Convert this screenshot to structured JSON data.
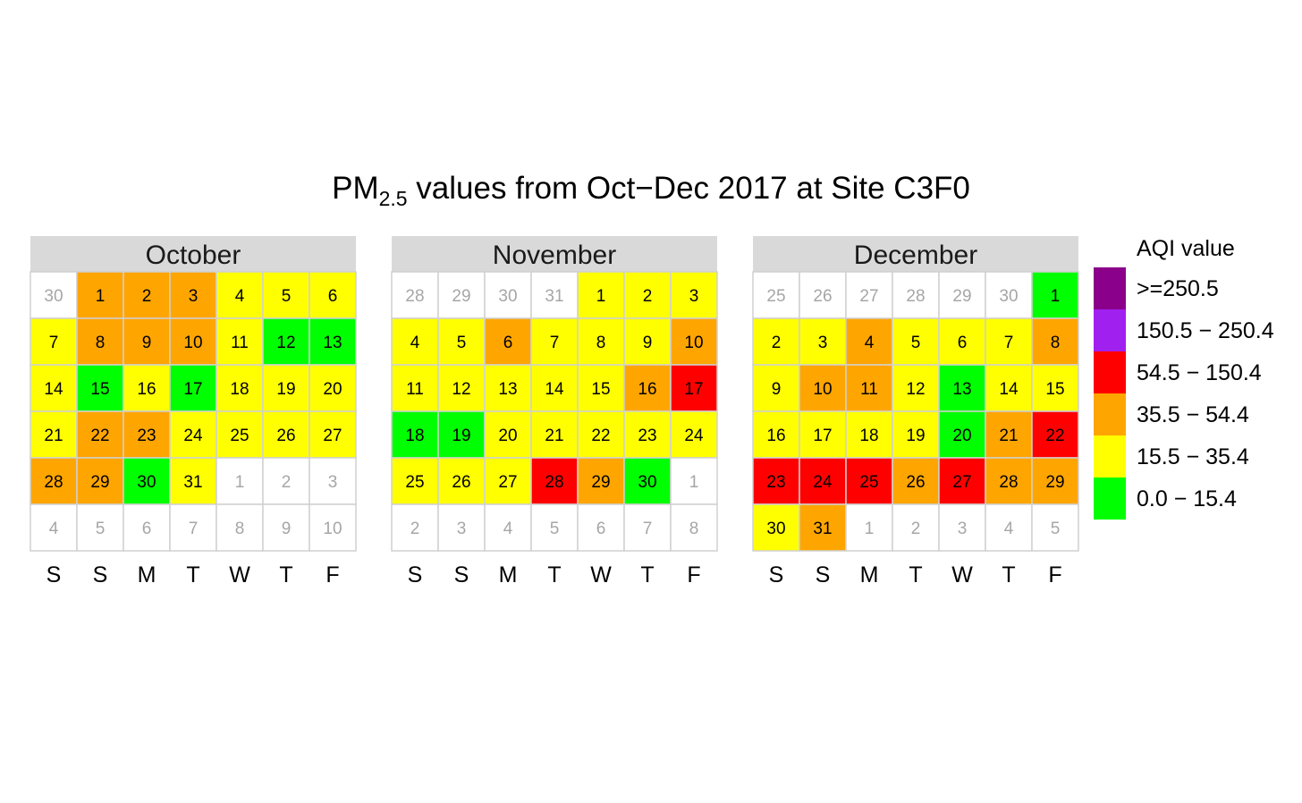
{
  "chart_data": {
    "type": "heatmap",
    "title": {
      "prefix": "PM",
      "subscript": "2.5",
      "suffix": " values from Oct−Dec 2017 at Site C3F0"
    },
    "weekday_labels": [
      "S",
      "S",
      "M",
      "T",
      "W",
      "T",
      "F"
    ],
    "legend": {
      "title": "AQI value",
      "placement": "right",
      "items": [
        {
          "label": ">=250.5",
          "color": "#8B008B"
        },
        {
          "label": "150.5 − 250.4",
          "color": "#A020F0"
        },
        {
          "label": "54.5 − 150.4",
          "color": "#FF0000"
        },
        {
          "label": "35.5 − 54.4",
          "color": "#FFA500"
        },
        {
          "label": "15.5 − 35.4",
          "color": "#FFFF00"
        },
        {
          "label": "0.0 − 15.4",
          "color": "#00FF00"
        }
      ]
    },
    "level_colors": {
      "green": "#00FF00",
      "yellow": "#FFFF00",
      "orange": "#FFA500",
      "red": "#FF0000"
    },
    "months": [
      {
        "name": "October",
        "leading_days": [
          30
        ],
        "trailing_days": [
          1,
          2,
          3,
          4,
          5,
          6,
          7,
          8,
          9,
          10
        ],
        "days": [
          "orange",
          "orange",
          "orange",
          "yellow",
          "yellow",
          "yellow",
          "yellow",
          "orange",
          "orange",
          "orange",
          "yellow",
          "green",
          "green",
          "yellow",
          "green",
          "yellow",
          "green",
          "yellow",
          "yellow",
          "yellow",
          "yellow",
          "orange",
          "orange",
          "yellow",
          "yellow",
          "yellow",
          "yellow",
          "orange",
          "orange",
          "green",
          "yellow"
        ]
      },
      {
        "name": "November",
        "leading_days": [
          28,
          29,
          30,
          31
        ],
        "trailing_days": [
          1,
          2,
          3,
          4,
          5,
          6,
          7,
          8
        ],
        "days": [
          "yellow",
          "yellow",
          "yellow",
          "yellow",
          "yellow",
          "orange",
          "yellow",
          "yellow",
          "yellow",
          "orange",
          "yellow",
          "yellow",
          "yellow",
          "yellow",
          "yellow",
          "orange",
          "red",
          "green",
          "green",
          "yellow",
          "yellow",
          "yellow",
          "yellow",
          "yellow",
          "yellow",
          "yellow",
          "yellow",
          "red",
          "orange",
          "green"
        ]
      },
      {
        "name": "December",
        "leading_days": [
          25,
          26,
          27,
          28,
          29,
          30
        ],
        "trailing_days": [
          1,
          2,
          3,
          4,
          5
        ],
        "days": [
          "green",
          "yellow",
          "yellow",
          "orange",
          "yellow",
          "yellow",
          "yellow",
          "orange",
          "yellow",
          "orange",
          "orange",
          "yellow",
          "green",
          "yellow",
          "yellow",
          "yellow",
          "yellow",
          "yellow",
          "yellow",
          "green",
          "orange",
          "red",
          "red",
          "red",
          "red",
          "orange",
          "red",
          "orange",
          "orange",
          "yellow",
          "orange"
        ]
      }
    ]
  }
}
